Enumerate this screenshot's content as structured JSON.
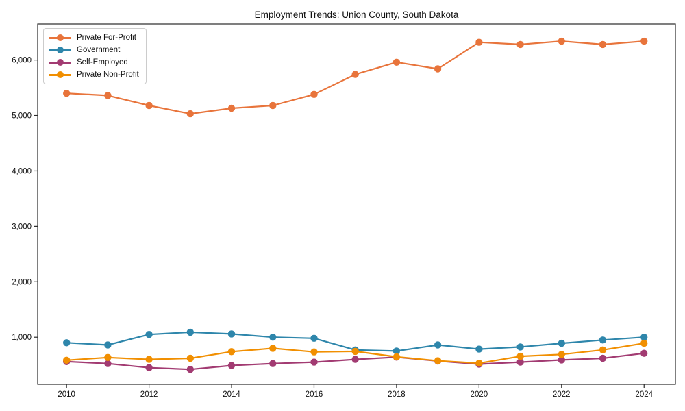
{
  "chart_data": {
    "type": "line",
    "title": "Employment Trends: Union County, South Dakota",
    "x": [
      2010,
      2011,
      2012,
      2013,
      2014,
      2015,
      2016,
      2017,
      2018,
      2019,
      2020,
      2021,
      2022,
      2023,
      2024
    ],
    "x_tick_labels": [
      "2010",
      "2012",
      "2014",
      "2016",
      "2018",
      "2020",
      "2022",
      "2024"
    ],
    "y_tick_values": [
      1000,
      2000,
      3000,
      4000,
      5000,
      6000
    ],
    "y_tick_labels": [
      "1,000",
      "2,000",
      "3,000",
      "4,000",
      "5,000",
      "6,000"
    ],
    "xlim": [
      2009.3,
      2024.76
    ],
    "ylim": [
      150,
      6650
    ],
    "grid": false,
    "legend_position": "upper left",
    "series": [
      {
        "name": "Private For-Profit",
        "color": "#E8743B",
        "values": [
          5400,
          5360,
          5180,
          5030,
          5130,
          5180,
          5380,
          5740,
          5960,
          5840,
          6320,
          6280,
          6340,
          6280,
          6340
        ]
      },
      {
        "name": "Government",
        "color": "#2E86AB",
        "values": [
          900,
          860,
          1050,
          1090,
          1060,
          1000,
          980,
          770,
          750,
          860,
          785,
          825,
          890,
          950,
          1000
        ]
      },
      {
        "name": "Self-Employed",
        "color": "#A23B72",
        "values": [
          560,
          525,
          450,
          420,
          490,
          525,
          550,
          600,
          640,
          570,
          515,
          550,
          590,
          620,
          710
        ]
      },
      {
        "name": "Private Non-Profit",
        "color": "#F18F01",
        "values": [
          585,
          635,
          600,
          620,
          740,
          800,
          735,
          745,
          645,
          575,
          530,
          655,
          690,
          770,
          890
        ]
      }
    ]
  }
}
